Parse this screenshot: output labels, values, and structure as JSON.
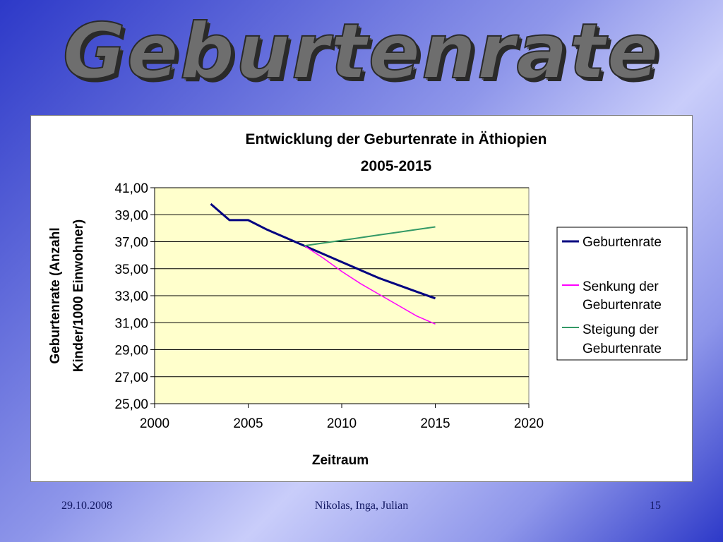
{
  "slide": {
    "title": "Geburtenrate",
    "footer_date": "29.10.2008",
    "footer_authors": "Nikolas, Inga, Julian",
    "footer_page": "15"
  },
  "chart_data": {
    "type": "line",
    "title_line1": "Entwicklung der Geburtenrate in Äthiopien",
    "title_line2": "2005-2015",
    "xlabel": "Zeitraum",
    "ylabel_line1": "Geburtenrate (Anzahl",
    "ylabel_line2": "Kinder/1000 Einwohner)",
    "xlim": [
      2000,
      2020
    ],
    "ylim": [
      25,
      41
    ],
    "xticks": [
      2000,
      2005,
      2010,
      2015,
      2020
    ],
    "xtick_labels": [
      "2000",
      "2005",
      "2010",
      "2015",
      "2020"
    ],
    "yticks": [
      25,
      27,
      29,
      31,
      33,
      35,
      37,
      39,
      41
    ],
    "ytick_labels": [
      "25,00",
      "27,00",
      "29,00",
      "31,00",
      "33,00",
      "35,00",
      "37,00",
      "39,00",
      "41,00"
    ],
    "grid": "horizontal",
    "plot_background": "#ffffcc",
    "legend_position": "right",
    "series": [
      {
        "name": "Geburtenrate",
        "color": "#000080",
        "x": [
          2003,
          2004,
          2005,
          2006,
          2007,
          2008,
          2009,
          2010,
          2011,
          2012,
          2013,
          2014,
          2015
        ],
        "y": [
          39.8,
          38.6,
          38.6,
          37.9,
          37.3,
          36.7,
          36.1,
          35.5,
          34.9,
          34.3,
          33.8,
          33.3,
          32.8
        ]
      },
      {
        "name_line1": "Senkung der",
        "name_line2": "Geburtenrate",
        "color": "#ff00ff",
        "x": [
          2008,
          2009,
          2010,
          2011,
          2012,
          2013,
          2014,
          2015
        ],
        "y": [
          36.7,
          35.8,
          34.8,
          33.9,
          33.1,
          32.3,
          31.5,
          30.9
        ]
      },
      {
        "name_line1": "Steigung der",
        "name_line2": "Geburtenrate",
        "color": "#339966",
        "x": [
          2008,
          2009,
          2010,
          2011,
          2012,
          2013,
          2014,
          2015
        ],
        "y": [
          36.7,
          36.9,
          37.1,
          37.3,
          37.5,
          37.7,
          37.9,
          38.1
        ]
      }
    ]
  }
}
